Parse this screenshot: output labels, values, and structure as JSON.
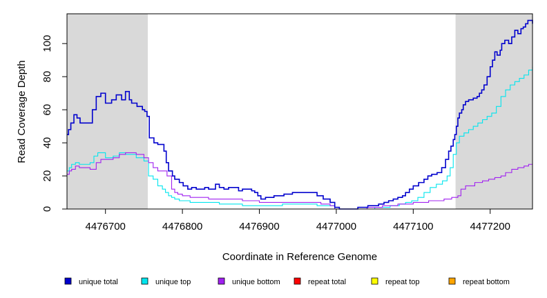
{
  "chart_data": {
    "type": "line",
    "xlabel": "Coordinate in Reference Genome",
    "ylabel": "Read Coverage Depth",
    "xlim": [
      4476650,
      4477255
    ],
    "ylim": [
      0,
      118
    ],
    "x_ticks": [
      4476700,
      4476800,
      4476900,
      4477000,
      4477100,
      4477200
    ],
    "x_tick_labels": [
      "4476700",
      "4476800",
      "4476900",
      "4477000",
      "4477100",
      "4477200"
    ],
    "y_ticks": [
      0,
      20,
      40,
      60,
      80,
      100
    ],
    "y_tick_labels": [
      "0",
      "20",
      "40",
      "60",
      "80",
      "100"
    ],
    "shaded_regions": [
      {
        "x0": 4476650,
        "x1": 4476755,
        "color": "#d9d9d9"
      },
      {
        "x0": 4477155,
        "x1": 4477255,
        "color": "#d9d9d9"
      }
    ],
    "series": [
      {
        "name": "unique total",
        "color": "#0000cd",
        "x": [
          4476650,
          4476652,
          4476655,
          4476659,
          4476663,
          4476667,
          4476672,
          4476683,
          4476688,
          4476694,
          4476700,
          4476708,
          4476714,
          4476721,
          4476726,
          4476731,
          4476734,
          4476741,
          4476748,
          4476751,
          4476754,
          4476757,
          4476763,
          4476768,
          4476774,
          4476776,
          4476779,
          4476782,
          4476787,
          4476790,
          4476796,
          4476801,
          4476807,
          4476812,
          4476818,
          4476822,
          4476829,
          4476834,
          4476843,
          4476848,
          4476854,
          4476860,
          4476869,
          4476873,
          4476878,
          4476890,
          4476894,
          4476898,
          4476902,
          4476908,
          4476919,
          4476932,
          4476943,
          4476958,
          4476970,
          4476975,
          4476983,
          4476992,
          4476998,
          4477004,
          4477015,
          4477028,
          4477041,
          4477055,
          4477062,
          4477068,
          4477074,
          4477080,
          4477086,
          4477090,
          4477095,
          4477100,
          4477107,
          4477114,
          4477119,
          4477124,
          4477131,
          4477137,
          4477142,
          4477146,
          4477149,
          4477152,
          4477154,
          4477156,
          4477158,
          4477160,
          4477163,
          4477165,
          4477168,
          4477172,
          4477178,
          4477183,
          4477186,
          4477189,
          4477192,
          4477196,
          4477200,
          4477203,
          4477206,
          4477209,
          4477213,
          4477215,
          4477219,
          4477224,
          4477228,
          4477232,
          4477236,
          4477240,
          4477243,
          4477246,
          4477249,
          4477252,
          4477255
        ],
        "y": [
          45,
          48,
          52,
          57,
          55,
          52,
          52,
          60,
          68,
          70,
          64,
          66,
          69,
          66,
          71,
          66,
          64,
          62,
          60,
          59,
          56,
          43,
          40,
          39,
          39,
          35,
          28,
          23,
          20,
          18,
          16,
          14,
          12,
          13,
          12,
          12,
          13,
          12,
          15,
          13,
          12,
          13,
          13,
          11,
          12,
          11,
          10,
          8,
          6,
          7,
          8,
          9,
          10,
          10,
          10,
          8,
          6,
          4,
          1,
          0,
          0,
          1,
          2,
          3,
          4,
          5,
          6,
          7,
          8,
          10,
          12,
          14,
          16,
          18,
          20,
          21,
          22,
          25,
          30,
          35,
          38,
          42,
          45,
          50,
          55,
          58,
          60,
          63,
          65,
          66,
          67,
          68,
          70,
          72,
          75,
          80,
          86,
          90,
          95,
          93,
          96,
          100,
          102,
          100,
          104,
          108,
          106,
          109,
          110,
          112,
          114,
          114,
          112
        ],
        "line_width": 1.6
      },
      {
        "name": "unique top",
        "color": "#00e5ee",
        "x": [
          4476650,
          4476653,
          4476656,
          4476661,
          4476666,
          4476672,
          4476680,
          4476685,
          4476690,
          4476700,
          4476710,
          4476718,
          4476726,
          4476732,
          4476740,
          4476750,
          4476756,
          4476762,
          4476768,
          4476774,
          4476778,
          4476782,
          4476786,
          4476790,
          4476796,
          4476802,
          4476810,
          4476822,
          4476834,
          4476848,
          4476862,
          4476878,
          4476894,
          4476900,
          4476910,
          4476930,
          4476950,
          4476964,
          4476975,
          4476990,
          4476998,
          4477004,
          4477030,
          4477050,
          4477070,
          4477082,
          4477090,
          4477098,
          4477106,
          4477114,
          4477122,
          4477130,
          4477138,
          4477144,
          4477148,
          4477152,
          4477156,
          4477160,
          4477166,
          4477172,
          4477178,
          4477184,
          4477190,
          4477196,
          4477202,
          4477208,
          4477214,
          4477220,
          4477226,
          4477232,
          4477238,
          4477244,
          4477250,
          4477255
        ],
        "y": [
          23,
          25,
          27,
          28,
          27,
          27,
          28,
          32,
          34,
          31,
          32,
          34,
          33,
          33,
          31,
          29,
          20,
          18,
          14,
          12,
          10,
          8,
          7,
          6,
          5,
          5,
          4,
          4,
          4,
          3,
          3,
          2,
          2,
          2,
          2,
          3,
          3,
          3,
          2,
          2,
          0,
          0,
          0,
          1,
          2,
          3,
          4,
          5,
          7,
          10,
          13,
          15,
          17,
          20,
          25,
          33,
          40,
          44,
          46,
          48,
          50,
          52,
          54,
          56,
          58,
          62,
          68,
          72,
          75,
          77,
          79,
          81,
          84,
          86
        ]
      },
      {
        "name": "unique bottom",
        "color": "#a020f0",
        "x": [
          4476650,
          4476653,
          4476656,
          4476661,
          4476666,
          4476680,
          4476688,
          4476694,
          4476700,
          4476710,
          4476718,
          4476726,
          4476732,
          4476740,
          4476750,
          4476756,
          4476762,
          4476768,
          4476774,
          4476780,
          4476786,
          4476790,
          4476794,
          4476800,
          4476810,
          4476822,
          4476834,
          4476848,
          4476862,
          4476878,
          4476890,
          4476900,
          4476920,
          4476950,
          4476964,
          4476980,
          4476992,
          4476998,
          4477004,
          4477040,
          4477060,
          4477080,
          4477100,
          4477120,
          4477140,
          4477146,
          4477150,
          4477154,
          4477158,
          4477162,
          4477168,
          4477180,
          4477190,
          4477198,
          4477206,
          4477214,
          4477220,
          4477228,
          4477236,
          4477244,
          4477250,
          4477255
        ],
        "y": [
          21,
          23,
          24,
          26,
          25,
          24,
          28,
          30,
          30,
          31,
          33,
          34,
          34,
          33,
          31,
          28,
          25,
          23,
          23,
          20,
          12,
          10,
          9,
          8,
          7,
          7,
          6,
          6,
          6,
          5,
          5,
          4,
          4,
          4,
          4,
          3,
          2,
          0,
          0,
          1,
          2,
          3,
          4,
          5,
          6,
          6,
          7,
          7,
          8,
          12,
          14,
          16,
          17,
          18,
          19,
          20,
          22,
          24,
          25,
          26,
          27,
          27
        ]
      },
      {
        "name": "repeat total",
        "color": "#ff0000",
        "x": [
          4476650,
          4477255
        ],
        "y": [
          0,
          0
        ]
      },
      {
        "name": "repeat top",
        "color": "#ffff00",
        "x": [
          4476650,
          4477255
        ],
        "y": [
          0,
          0
        ]
      },
      {
        "name": "repeat bottom",
        "color": "#ffa500",
        "x": [
          4476650,
          4477255
        ],
        "y": [
          0,
          0
        ]
      }
    ]
  }
}
